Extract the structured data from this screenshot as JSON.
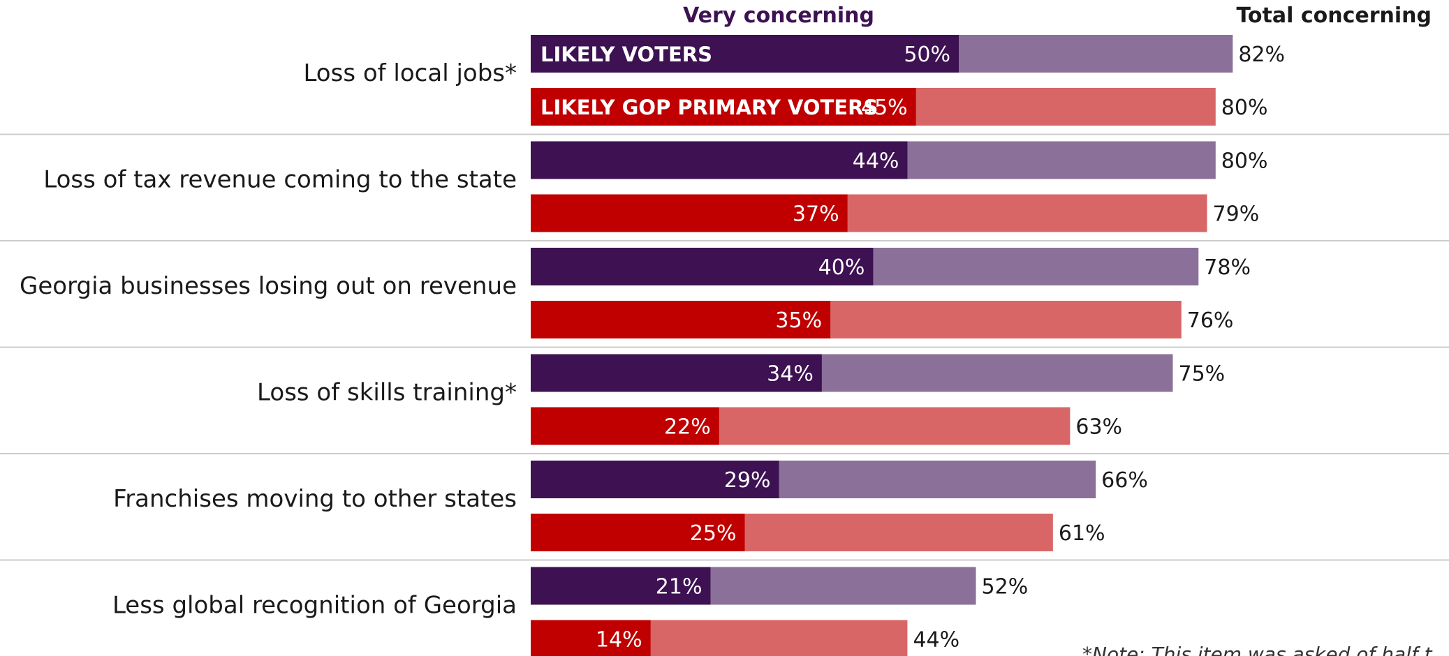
{
  "chart_data": {
    "type": "bar",
    "orientation": "horizontal",
    "stacked_overlay": true,
    "header_very": "Very concerning",
    "header_total": "Total concerning",
    "categories": [
      "Loss of local jobs*",
      "Loss of tax revenue coming to the state",
      "Georgia businesses losing out on revenue",
      "Loss of skills training*",
      "Franchises moving to other states",
      "Less global recognition of Georgia"
    ],
    "series": [
      {
        "name": "LIKELY VOTERS",
        "very": [
          50,
          44,
          40,
          34,
          29,
          21
        ],
        "total": [
          82,
          80,
          78,
          75,
          66,
          52
        ],
        "very_labels": [
          "50%",
          "44%",
          "40%",
          "34%",
          "29%",
          "21%"
        ],
        "total_labels": [
          "82%",
          "80%",
          "78%",
          "75%",
          "66%",
          "52%"
        ],
        "color_very": "#3d1152",
        "color_total": "#8b7099"
      },
      {
        "name": "LIKELY GOP PRIMARY VOTERS",
        "very": [
          45,
          37,
          35,
          22,
          25,
          14
        ],
        "total": [
          80,
          79,
          76,
          63,
          61,
          44
        ],
        "very_labels": [
          "45%",
          "37%",
          "35%",
          "22%",
          "25%",
          "14%"
        ],
        "total_labels": [
          "80%",
          "79%",
          "76%",
          "63%",
          "61%",
          "44%"
        ],
        "color_very": "#c00000",
        "color_total": "#d96666"
      }
    ],
    "xlim": [
      0,
      100
    ],
    "grid": false,
    "header_color": "#3d1152",
    "note": "*Note: This item was asked of half t"
  }
}
